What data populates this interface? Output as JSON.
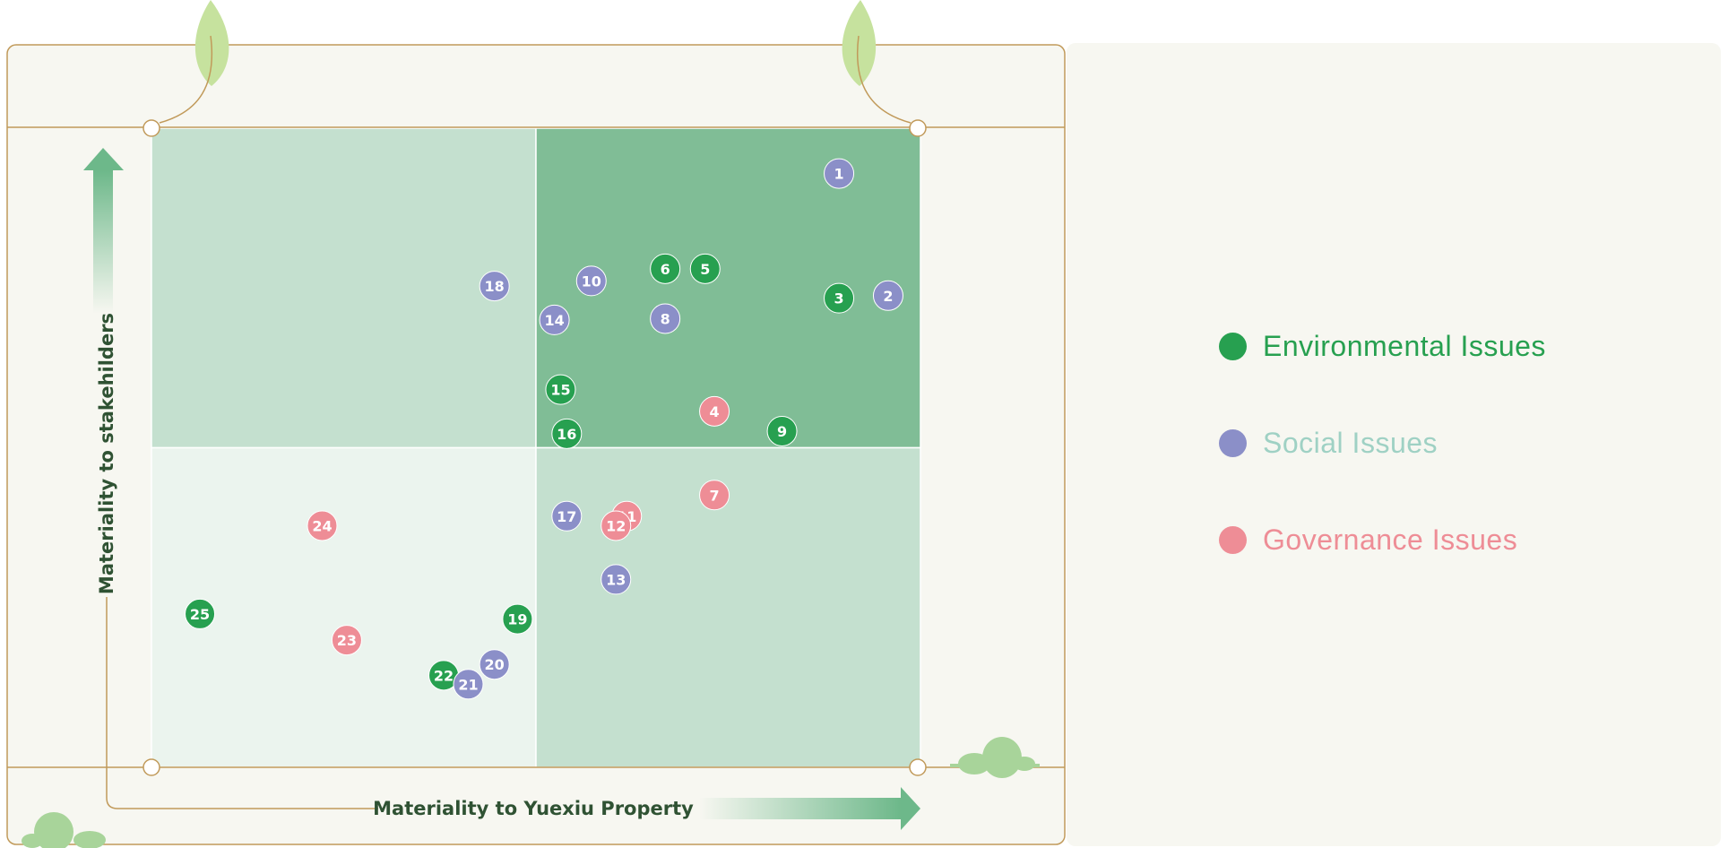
{
  "chart_data": {
    "type": "scatter",
    "title": "",
    "xlabel": "Materiality to Yuexiu Property",
    "ylabel": "Materiality to stakehilders",
    "xlim": [
      0,
      100
    ],
    "ylim": [
      0,
      100
    ],
    "grid": false,
    "legend_position": "right",
    "colors": {
      "Environmental Issues": "#27a050",
      "Social Issues": "#8b8fc8",
      "Governance Issues": "#ee8d96"
    },
    "quadrant_colors": {
      "top_left": "#c4e0cf",
      "top_right": "#80bd96",
      "bottom_left": "#ebf4ee",
      "bottom_right": "#c4e0cf"
    },
    "series": [
      {
        "name": "Environmental Issues",
        "points": [
          {
            "label": "3",
            "x": 89.4,
            "y": 73.4
          },
          {
            "label": "5",
            "x": 72.0,
            "y": 78.0
          },
          {
            "label": "6",
            "x": 66.8,
            "y": 78.0
          },
          {
            "label": "9",
            "x": 82.0,
            "y": 52.6
          },
          {
            "label": "15",
            "x": 53.2,
            "y": 59.1
          },
          {
            "label": "16",
            "x": 54.0,
            "y": 52.2
          },
          {
            "label": "19",
            "x": 47.6,
            "y": 23.2
          },
          {
            "label": "22",
            "x": 38.0,
            "y": 14.4
          },
          {
            "label": "25",
            "x": 6.3,
            "y": 24.0
          }
        ]
      },
      {
        "name": "Social Issues",
        "points": [
          {
            "label": "1",
            "x": 89.4,
            "y": 92.9
          },
          {
            "label": "2",
            "x": 95.8,
            "y": 73.8
          },
          {
            "label": "8",
            "x": 66.8,
            "y": 70.2
          },
          {
            "label": "10",
            "x": 57.2,
            "y": 76.1
          },
          {
            "label": "14",
            "x": 52.4,
            "y": 70.0
          },
          {
            "label": "17",
            "x": 54.0,
            "y": 39.3
          },
          {
            "label": "18",
            "x": 44.6,
            "y": 75.3
          },
          {
            "label": "13",
            "x": 60.4,
            "y": 29.4
          },
          {
            "label": "20",
            "x": 44.6,
            "y": 16.1
          },
          {
            "label": "21",
            "x": 41.2,
            "y": 13.0
          }
        ]
      },
      {
        "name": "Governance Issues",
        "points": [
          {
            "label": "4",
            "x": 73.2,
            "y": 55.7
          },
          {
            "label": "7",
            "x": 73.2,
            "y": 42.6
          },
          {
            "label": "11",
            "x": 61.8,
            "y": 39.3
          },
          {
            "label": "12",
            "x": 60.4,
            "y": 37.8
          },
          {
            "label": "23",
            "x": 25.4,
            "y": 19.9
          },
          {
            "label": "24",
            "x": 22.2,
            "y": 37.8
          }
        ]
      }
    ]
  }
}
